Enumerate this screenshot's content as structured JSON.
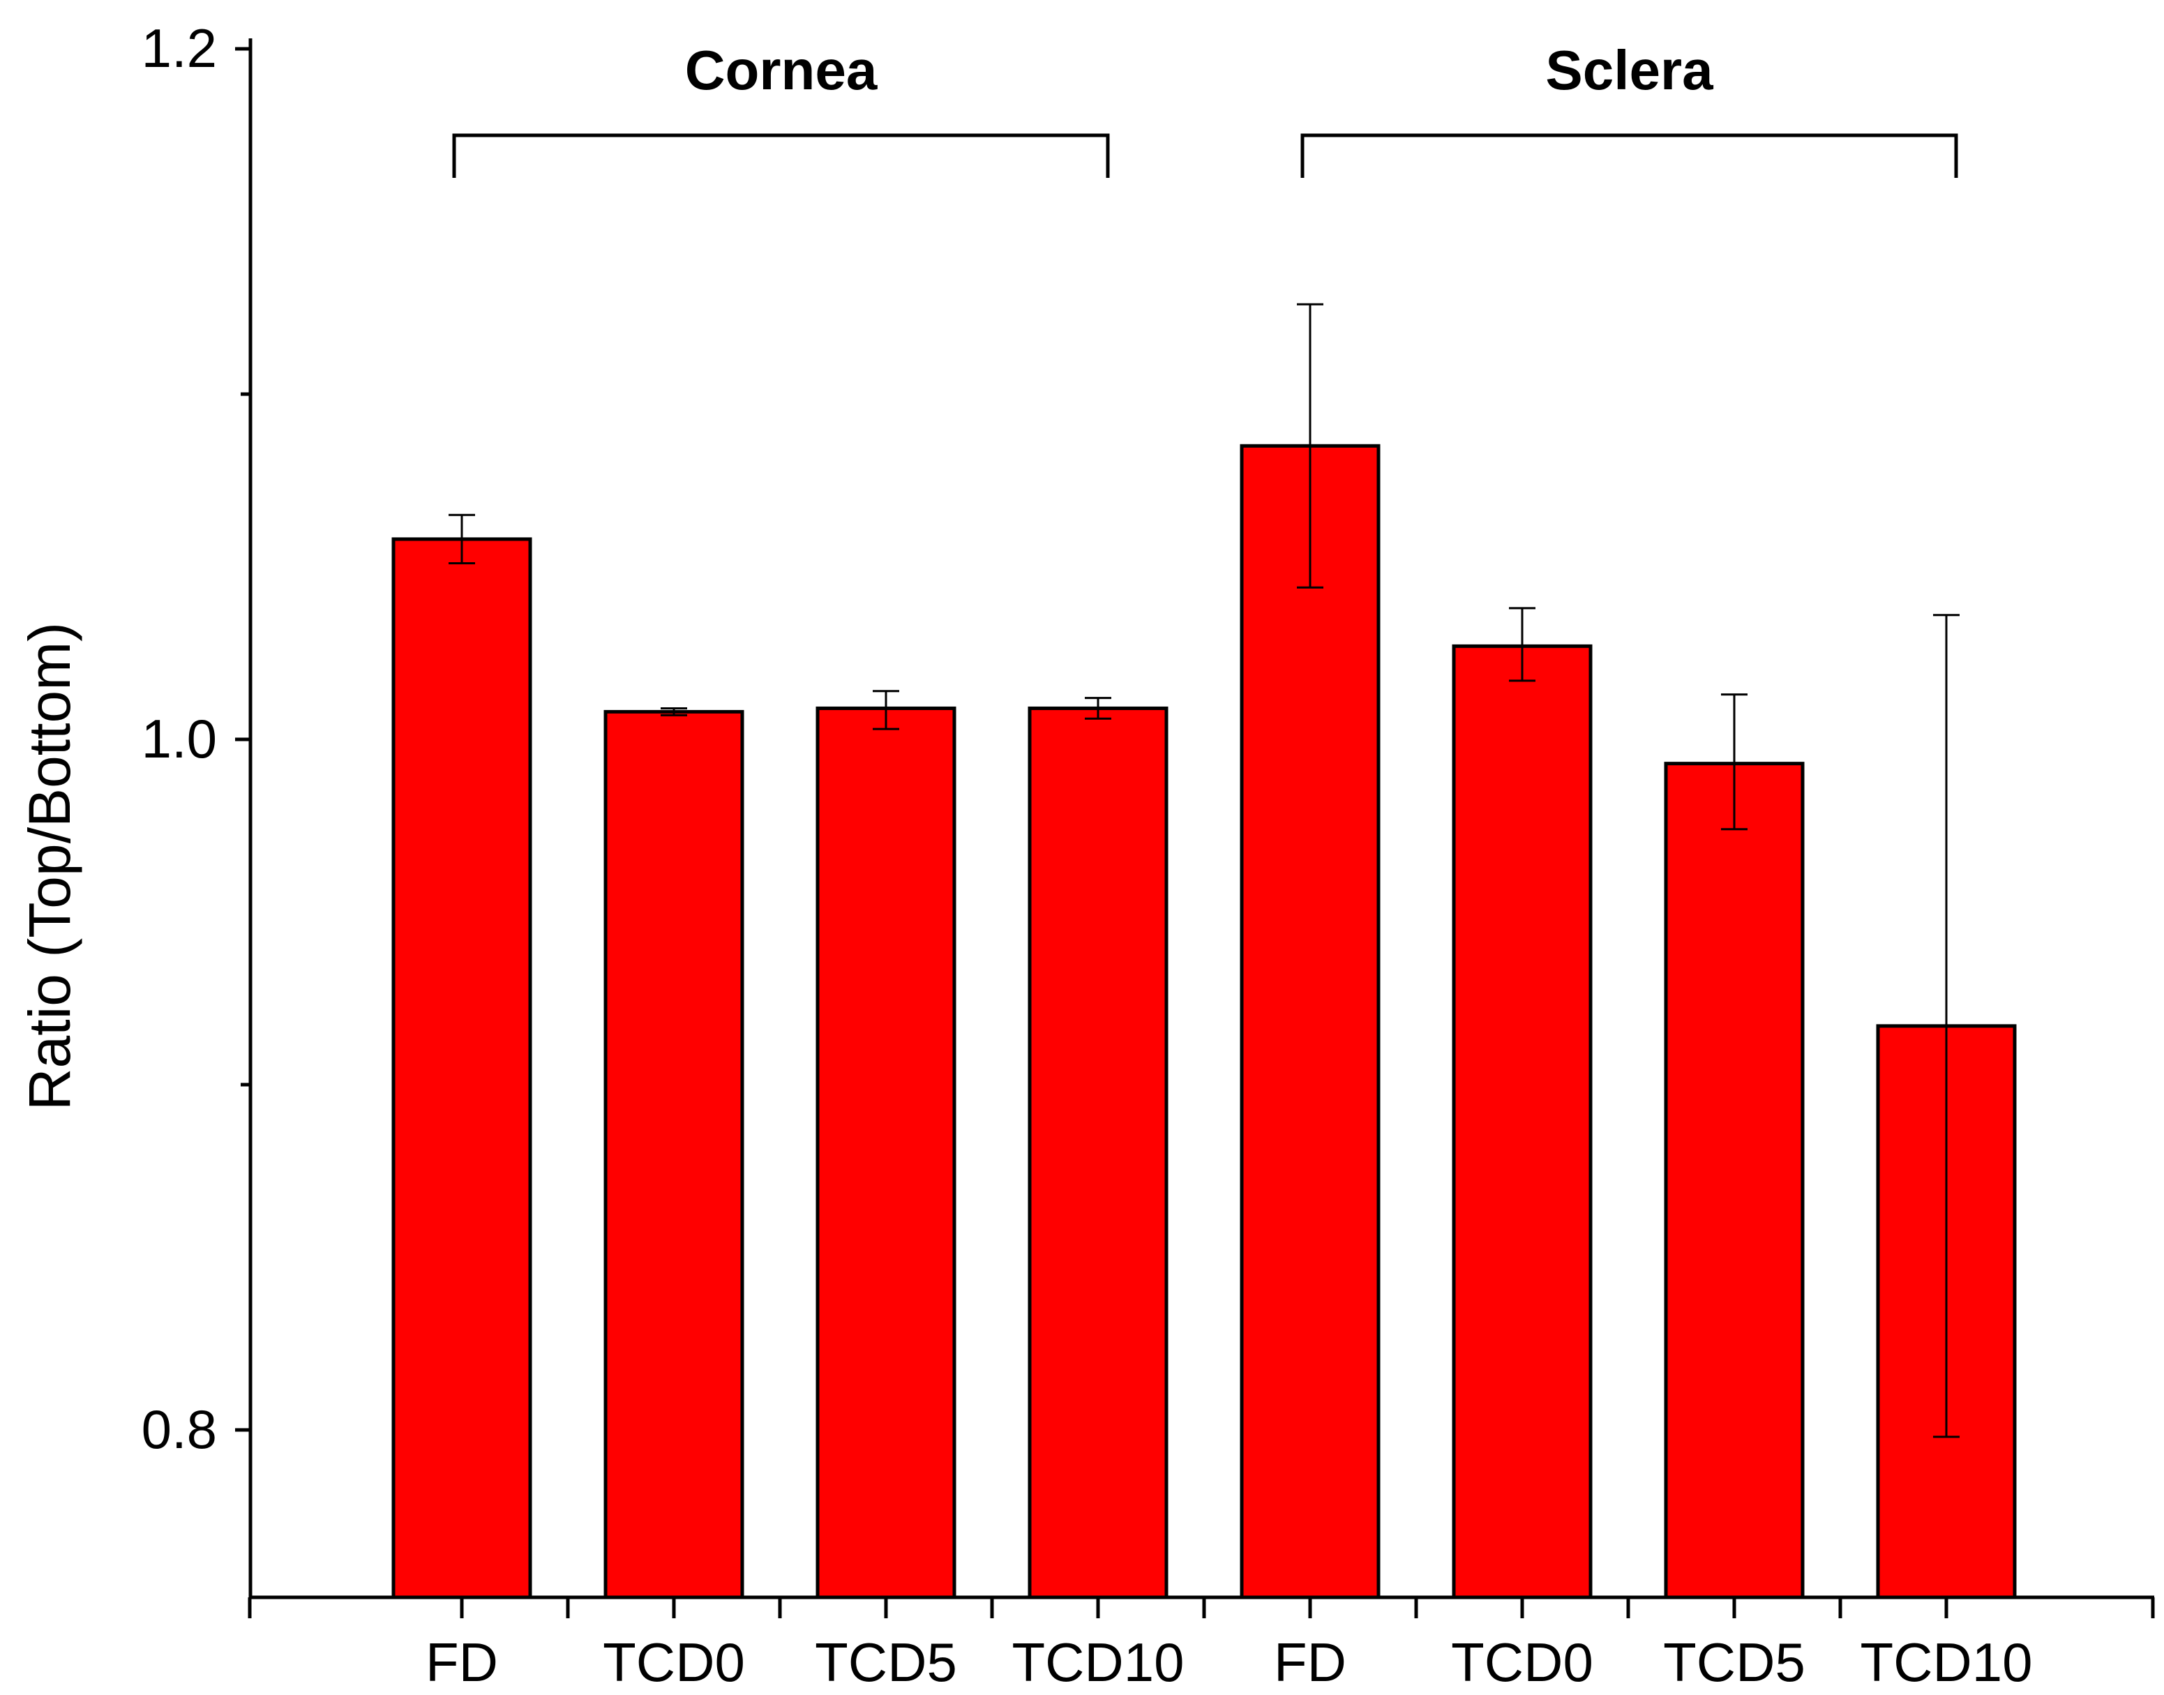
{
  "chart_data": {
    "type": "bar",
    "title": "",
    "xlabel": "",
    "ylabel": "Ratio (Top/Bottom)",
    "ylim": [
      0.75,
      1.2
    ],
    "yticks": [
      {
        "value": 1.2,
        "label": "1.2"
      },
      {
        "value": 1.0,
        "label": "1.0"
      },
      {
        "value": 0.8,
        "label": "0.8"
      }
    ],
    "minor_yticks": [
      1.1,
      0.9
    ],
    "grid": false,
    "bar_color": "#ff0000",
    "categories": [
      "FD",
      "TCD0",
      "TCD5",
      "TCD10",
      "FD",
      "TCD0",
      "TCD5",
      "TCD10"
    ],
    "values": [
      1.058,
      1.008,
      1.009,
      1.009,
      1.085,
      1.027,
      0.993,
      0.917
    ],
    "error_low": [
      1.051,
      1.007,
      1.003,
      1.006,
      1.044,
      1.017,
      0.974,
      0.798
    ],
    "error_high": [
      1.065,
      1.009,
      1.014,
      1.012,
      1.126,
      1.038,
      1.013,
      1.036
    ],
    "groups": [
      {
        "label": "Cornea",
        "start": 0,
        "end": 3
      },
      {
        "label": "Sclera",
        "start": 4,
        "end": 7
      }
    ]
  }
}
